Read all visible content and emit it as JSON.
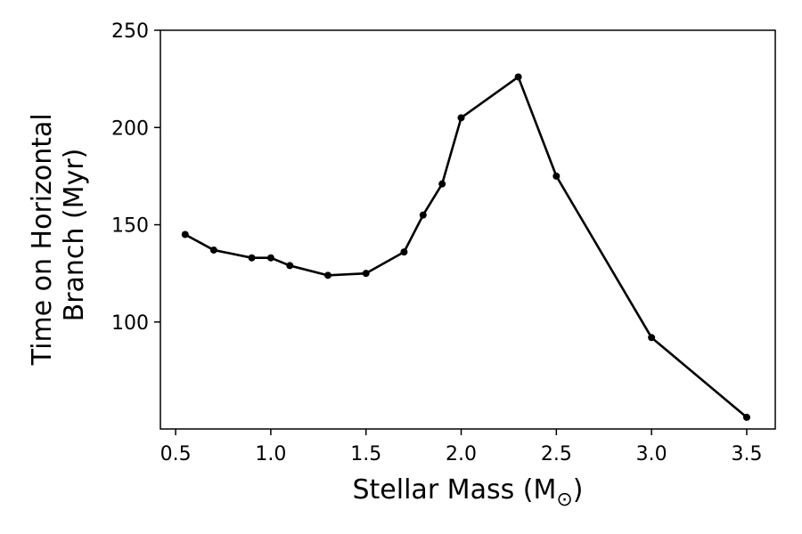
{
  "chart_data": {
    "type": "line",
    "title": "",
    "xlabel": "Stellar Mass (M",
    "xlabel_sub": "⊙",
    "xlabel_close": ")",
    "ylabel_lines": [
      "Time on Horizontal",
      "Branch (Myr)"
    ],
    "xlim": [
      0.42,
      3.65
    ],
    "ylim": [
      45,
      250
    ],
    "xticks": [
      0.5,
      1.0,
      1.5,
      2.0,
      2.5,
      3.0,
      3.5
    ],
    "xtick_labels": [
      "0.5",
      "1.0",
      "1.5",
      "2.0",
      "2.5",
      "3.0",
      "3.5"
    ],
    "yticks": [
      100,
      150,
      200,
      250
    ],
    "ytick_labels": [
      "100",
      "150",
      "200",
      "250"
    ],
    "grid": false,
    "series": [
      {
        "color": "#000000",
        "marker": "circle",
        "x": [
          0.55,
          0.7,
          0.9,
          1.0,
          1.1,
          1.3,
          1.5,
          1.7,
          1.8,
          1.9,
          2.0,
          2.3,
          2.5,
          3.0,
          3.5
        ],
        "y": [
          145,
          137,
          133,
          133,
          129,
          124,
          125,
          136,
          155,
          171,
          205,
          226,
          175,
          92,
          51
        ]
      }
    ]
  }
}
